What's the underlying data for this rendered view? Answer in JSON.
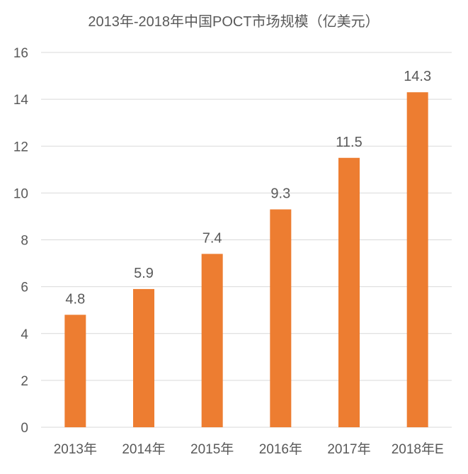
{
  "chart_data": {
    "type": "bar",
    "title": "2013年-2018年中国POCT市场规模（亿美元）",
    "categories": [
      "2013年",
      "2014年",
      "2015年",
      "2016年",
      "2017年",
      "2018年E"
    ],
    "values": [
      4.8,
      5.9,
      7.4,
      9.3,
      11.5,
      14.3
    ],
    "data_labels": [
      "4.8",
      "5.9",
      "7.4",
      "9.3",
      "11.5",
      "14.3"
    ],
    "xlabel": "",
    "ylabel": "",
    "ylim": [
      0,
      16
    ],
    "yticks": [
      "0",
      "2",
      "4",
      "6",
      "8",
      "10",
      "12",
      "14",
      "16"
    ],
    "grid": true,
    "legend": "none",
    "bar_color": "#ED7D31",
    "grid_color": "#D9D9D9"
  }
}
